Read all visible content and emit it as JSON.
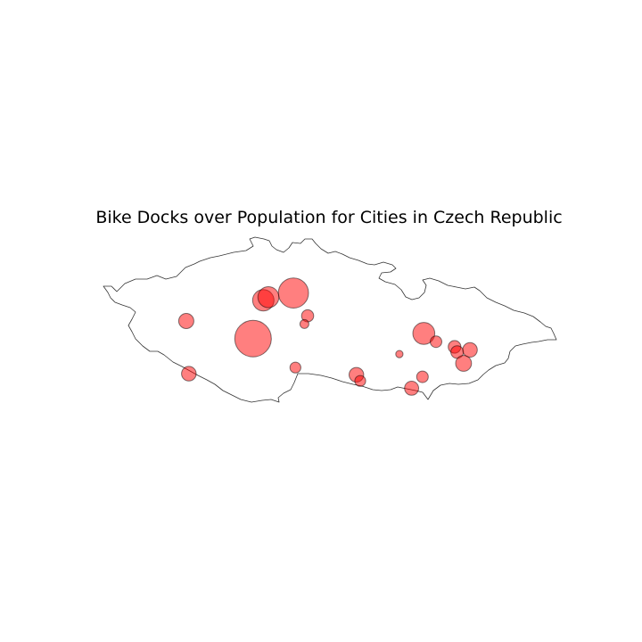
{
  "title": "Bike Docks over Population for Cities in Czech Republic",
  "colors": {
    "bubble_fill": "#ff0000",
    "outline": "#333333",
    "background": "#ffffff"
  },
  "chart_data": {
    "type": "scatter",
    "title": "Bike Docks over Population for Cities in Czech Republic",
    "xlabel": "",
    "ylabel": "",
    "axes_visible": false,
    "grid": false,
    "xlim": [
      12.0,
      19.0
    ],
    "ylim": [
      48.3,
      51.3
    ],
    "size_encoding": "bubble area proportional to bike docks over population",
    "points": [
      {
        "lon": 14.42,
        "lat": 50.08,
        "size": 100
      },
      {
        "lon": 15.05,
        "lat": 50.52,
        "size": 68
      },
      {
        "lon": 14.58,
        "lat": 50.45,
        "size": 34
      },
      {
        "lon": 14.66,
        "lat": 50.48,
        "size": 33
      },
      {
        "lon": 13.38,
        "lat": 50.25,
        "size": 17
      },
      {
        "lon": 13.42,
        "lat": 49.74,
        "size": 16
      },
      {
        "lon": 15.27,
        "lat": 50.3,
        "size": 11
      },
      {
        "lon": 15.22,
        "lat": 50.22,
        "size": 6
      },
      {
        "lon": 15.08,
        "lat": 49.8,
        "size": 9
      },
      {
        "lon": 16.03,
        "lat": 49.73,
        "size": 16
      },
      {
        "lon": 16.09,
        "lat": 49.67,
        "size": 9
      },
      {
        "lon": 16.7,
        "lat": 49.93,
        "size": 4
      },
      {
        "lon": 17.08,
        "lat": 50.13,
        "size": 36
      },
      {
        "lon": 17.27,
        "lat": 50.05,
        "size": 10
      },
      {
        "lon": 17.06,
        "lat": 49.71,
        "size": 10
      },
      {
        "lon": 16.89,
        "lat": 49.6,
        "size": 15
      },
      {
        "lon": 17.56,
        "lat": 50.0,
        "size": 12
      },
      {
        "lon": 17.6,
        "lat": 49.95,
        "size": 12
      },
      {
        "lon": 17.8,
        "lat": 49.97,
        "size": 16
      },
      {
        "lon": 17.7,
        "lat": 49.84,
        "size": 19
      }
    ]
  }
}
